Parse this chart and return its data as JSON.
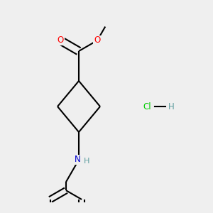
{
  "background_color": "#efefef",
  "fig_size": [
    3.0,
    3.0
  ],
  "dpi": 100,
  "bond_color": "#000000",
  "bond_width": 1.5,
  "atom_colors": {
    "O": "#ff0000",
    "N": "#0000cd",
    "Cl": "#00cc00",
    "H_teal": "#5f9ea0"
  },
  "font_size": 8.5,
  "hcl_font_size": 8.5
}
